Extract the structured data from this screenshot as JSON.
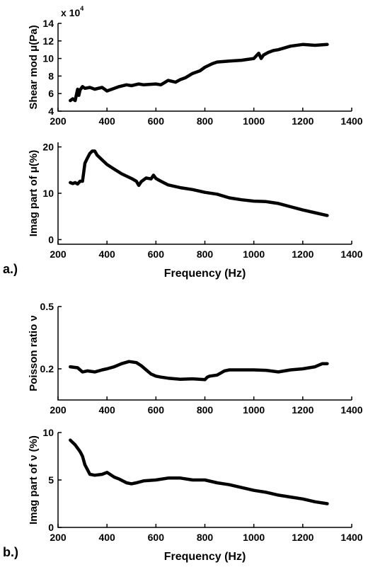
{
  "panel_labels": {
    "a": "a.)",
    "b": "b.)"
  },
  "chart_data": [
    {
      "type": "line",
      "ylabel": "Shear mod μ(Pa)",
      "xlabel": "",
      "multiplier": {
        "base": "x 10",
        "exponent": "4"
      },
      "xlim": [
        200,
        1400
      ],
      "ylim": [
        4,
        14
      ],
      "xticks": [
        "200",
        "400",
        "600",
        "800",
        "1000",
        "1200",
        "1400"
      ],
      "yticks": [
        "4",
        "6",
        "8",
        "10",
        "12",
        "14"
      ],
      "series": [
        {
          "color": "#000000",
          "x": [
            250,
            260,
            270,
            280,
            285,
            290,
            300,
            310,
            330,
            350,
            380,
            400,
            420,
            450,
            480,
            500,
            530,
            550,
            600,
            620,
            650,
            680,
            700,
            720,
            750,
            780,
            800,
            830,
            850,
            900,
            950,
            1000,
            1020,
            1030,
            1040,
            1060,
            1080,
            1100,
            1150,
            1200,
            1250,
            1300
          ],
          "y": [
            5.2,
            5.4,
            5.2,
            6.5,
            5.8,
            6.4,
            6.8,
            6.6,
            6.7,
            6.5,
            6.7,
            6.3,
            6.5,
            6.8,
            7.0,
            6.9,
            7.1,
            7.0,
            7.1,
            7.0,
            7.5,
            7.3,
            7.6,
            7.8,
            8.3,
            8.6,
            9.0,
            9.4,
            9.6,
            9.7,
            9.8,
            10.0,
            10.6,
            10.0,
            10.4,
            10.7,
            10.9,
            11.0,
            11.4,
            11.6,
            11.5,
            11.6
          ]
        }
      ]
    },
    {
      "type": "line",
      "ylabel": "Imag part of μ(%)",
      "xlabel": "Frequency (Hz)",
      "xlim": [
        200,
        1400
      ],
      "ylim": [
        -1,
        21
      ],
      "xticks": [
        "200",
        "400",
        "600",
        "800",
        "1000",
        "1200",
        "1400"
      ],
      "yticks": [
        "0",
        "10",
        "20"
      ],
      "ytick_values": [
        0,
        10,
        20
      ],
      "series": [
        {
          "color": "#000000",
          "x": [
            250,
            260,
            270,
            280,
            290,
            300,
            310,
            320,
            330,
            340,
            350,
            360,
            380,
            400,
            430,
            460,
            500,
            520,
            530,
            540,
            560,
            580,
            590,
            600,
            620,
            650,
            700,
            750,
            800,
            850,
            900,
            950,
            1000,
            1050,
            1100,
            1150,
            1200,
            1250,
            1300
          ],
          "y": [
            12.3,
            12.1,
            12.3,
            12.0,
            12.6,
            12.6,
            16.5,
            17.6,
            18.6,
            19.1,
            19.1,
            18.2,
            17.2,
            16.2,
            15.2,
            14.2,
            13.2,
            12.6,
            11.7,
            12.5,
            13.3,
            13.1,
            13.9,
            13.2,
            12.6,
            11.8,
            11.2,
            10.8,
            10.2,
            9.8,
            9.0,
            8.6,
            8.3,
            8.2,
            7.8,
            7.1,
            6.4,
            5.8,
            5.2
          ]
        }
      ]
    },
    {
      "type": "line",
      "ylabel": "Poisson ratio ν",
      "xlabel": "",
      "xlim": [
        200,
        1400
      ],
      "ylim": [
        0.05,
        0.5
      ],
      "xticks": [
        "200",
        "400",
        "600",
        "800",
        "1000",
        "1200",
        "1400"
      ],
      "yticks": [
        "0.2",
        "0.5"
      ],
      "ytick_values": [
        0.2,
        0.5
      ],
      "series": [
        {
          "color": "#000000",
          "x": [
            250,
            280,
            300,
            320,
            350,
            380,
            400,
            430,
            460,
            490,
            520,
            540,
            560,
            580,
            600,
            620,
            650,
            700,
            750,
            800,
            810,
            820,
            850,
            880,
            900,
            950,
            1000,
            1050,
            1100,
            1150,
            1200,
            1250,
            1280,
            1300
          ],
          "y": [
            0.21,
            0.205,
            0.185,
            0.19,
            0.185,
            0.195,
            0.2,
            0.21,
            0.225,
            0.235,
            0.23,
            0.215,
            0.195,
            0.175,
            0.165,
            0.16,
            0.155,
            0.15,
            0.152,
            0.148,
            0.16,
            0.165,
            0.17,
            0.19,
            0.195,
            0.195,
            0.195,
            0.193,
            0.185,
            0.195,
            0.2,
            0.21,
            0.225,
            0.225
          ]
        }
      ]
    },
    {
      "type": "line",
      "ylabel": "Imag part of ν (%)",
      "xlabel": "Frequency (Hz)",
      "xlim": [
        200,
        1400
      ],
      "ylim": [
        0,
        10
      ],
      "xticks": [
        "200",
        "400",
        "600",
        "800",
        "1000",
        "1200",
        "1400"
      ],
      "yticks": [
        "0",
        "5",
        "10"
      ],
      "ytick_values": [
        0,
        5,
        10
      ],
      "series": [
        {
          "color": "#000000",
          "x": [
            250,
            270,
            290,
            300,
            310,
            330,
            350,
            380,
            400,
            430,
            450,
            480,
            500,
            520,
            550,
            600,
            650,
            700,
            750,
            800,
            850,
            900,
            950,
            1000,
            1050,
            1100,
            1150,
            1200,
            1250,
            1300
          ],
          "y": [
            9.2,
            8.7,
            8.0,
            7.5,
            6.6,
            5.6,
            5.5,
            5.6,
            5.8,
            5.3,
            5.1,
            4.7,
            4.6,
            4.7,
            4.9,
            5.0,
            5.2,
            5.2,
            5.0,
            5.0,
            4.7,
            4.5,
            4.2,
            3.9,
            3.7,
            3.4,
            3.2,
            3.0,
            2.7,
            2.5
          ]
        }
      ]
    }
  ]
}
